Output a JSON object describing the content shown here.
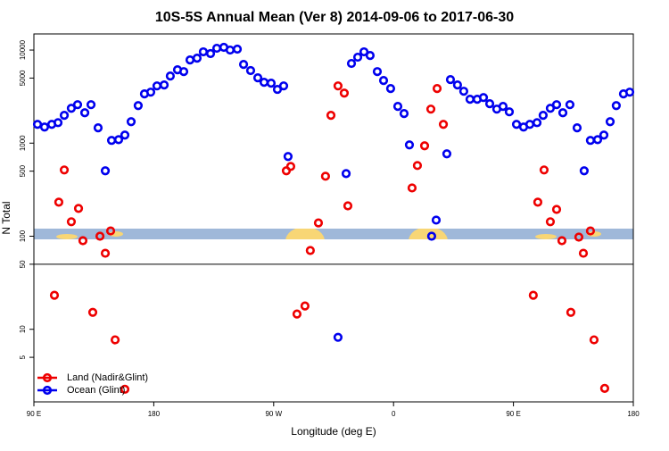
{
  "chart_data": {
    "type": "scatter",
    "title": "10S-5S Annual Mean (Ver 8)   2014-09-06 to 2017-06-30",
    "x_label": "Longitude (deg E)",
    "y_label": "N Total",
    "log_y": true,
    "legend": "lower left",
    "xlim": [
      90,
      540
    ],
    "ylim": [
      1.66,
      14900
    ],
    "xticks": [
      {
        "value": 90,
        "label": "90 E"
      },
      180,
      {
        "value": 270,
        "label": "90 W"
      },
      {
        "value": 360,
        "label": "0"
      },
      {
        "value": 450,
        "label": "90 E"
      },
      {
        "value": 540,
        "label": "180"
      }
    ],
    "yticks": [
      5,
      10,
      50,
      100,
      500,
      1000,
      5000,
      10000
    ],
    "hline": 50,
    "series": [
      {
        "name": "Ocean (Glint)",
        "color": "#0000ee",
        "x": [
          92.7,
          98.0,
          103.4,
          108.1,
          112.8,
          118.1,
          122.8,
          128.2,
          132.9,
          138.2,
          143.6,
          148.3,
          153.6,
          158.3,
          163.0,
          168.3,
          173.0,
          177.7,
          182.4,
          187.8,
          192.4,
          197.8,
          202.5,
          207.2,
          212.5,
          217.2,
          222.6,
          227.3,
          232.6,
          237.3,
          242.7,
          247.4,
          252.7,
          258.1,
          262.8,
          268.1,
          272.8,
          277.5,
          280.8,
          318.3,
          324.4,
          328.4,
          333.1,
          337.8,
          342.4,
          347.8,
          352.5,
          357.8,
          363.2,
          367.9,
          371.9,
          388.6,
          392.0,
          400.0,
          402.7,
          408.0,
          412.7,
          417.4,
          422.8,
          427.5,
          432.2,
          437.5,
          442.2,
          446.9,
          452.3,
          457.6,
          462.3,
          467.7,
          472.3,
          477.7,
          482.4,
          487.1,
          492.4,
          497.8,
          503.1,
          507.8,
          513.2,
          517.9,
          522.6,
          527.2,
          532.6,
          537.3
        ],
        "values": [
          1590,
          1490,
          1590,
          1660,
          1990,
          2370,
          2590,
          2120,
          2590,
          1460,
          504,
          1070,
          1090,
          1220,
          1700,
          2530,
          3380,
          3530,
          4120,
          4220,
          5260,
          6140,
          5870,
          7830,
          8190,
          9570,
          9160,
          10450,
          10690,
          10000,
          10230,
          7010,
          6020,
          5030,
          4510,
          4410,
          3780,
          4120,
          718,
          8.2,
          471,
          7180,
          8380,
          9570,
          8750,
          5870,
          4710,
          3860,
          2480,
          2080,
          957,
          100,
          149,
          767,
          4820,
          4220,
          3610,
          2960,
          2960,
          3090,
          2650,
          2320,
          2480,
          2170,
          1590,
          1490,
          1590,
          1660,
          1990,
          2370,
          2590,
          2120,
          2590,
          1460,
          504,
          1070,
          1090,
          1220,
          1700,
          2530,
          3380,
          3530
        ]
      },
      {
        "name": "Land (Nadir&Glint)",
        "color": "#ee0000",
        "x": [
          105.4,
          112.8,
          108.7,
          118.1,
          123.5,
          126.8,
          134.2,
          139.6,
          143.6,
          147.6,
          151.0,
          158.3,
          279.5,
          282.8,
          287.5,
          293.5,
          297.5,
          303.6,
          308.9,
          313.0,
          318.3,
          323.0,
          325.7,
          373.9,
          377.9,
          383.3,
          388.0,
          392.7,
          397.4,
          464.9,
          473.0,
          468.3,
          477.7,
          482.4,
          486.4,
          493.1,
          499.1,
          502.5,
          507.8,
          510.5,
          518.5
        ],
        "values": [
          23.2,
          515,
          232,
          143,
          199,
          89.5,
          15.2,
          100,
          65.6,
          114,
          7.7,
          2.27,
          504,
          562,
          14.6,
          17.8,
          70.2,
          139,
          441,
          1990,
          4120,
          3450,
          212,
          330,
          575,
          936,
          2320,
          3860,
          1590,
          23.2,
          515,
          232,
          143,
          194,
          89.5,
          15.2,
          97.8,
          65.6,
          114,
          7.7,
          2.32
        ]
      }
    ]
  }
}
